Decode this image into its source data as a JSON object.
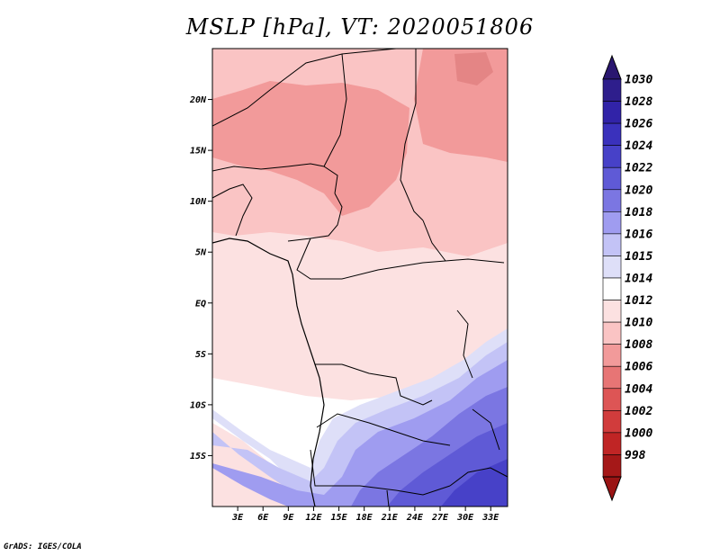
{
  "title": "MSLP [hPa], VT: 2020051806",
  "credit": "GrADS: IGES/COLA",
  "map": {
    "lon_range": [
      0,
      35
    ],
    "lat_range": [
      -20,
      25
    ],
    "lat_ticks": [
      {
        "value": 20,
        "label": "20N"
      },
      {
        "value": 15,
        "label": "15N"
      },
      {
        "value": 10,
        "label": "10N"
      },
      {
        "value": 5,
        "label": "5N"
      },
      {
        "value": 0,
        "label": "EQ"
      },
      {
        "value": -5,
        "label": "5S"
      },
      {
        "value": -10,
        "label": "10S"
      },
      {
        "value": -15,
        "label": "15S"
      }
    ],
    "lon_ticks": [
      {
        "value": 3,
        "label": "3E"
      },
      {
        "value": 6,
        "label": "6E"
      },
      {
        "value": 9,
        "label": "9E"
      },
      {
        "value": 12,
        "label": "12E"
      },
      {
        "value": 15,
        "label": "15E"
      },
      {
        "value": 18,
        "label": "18E"
      },
      {
        "value": 21,
        "label": "21E"
      },
      {
        "value": 24,
        "label": "24E"
      },
      {
        "value": 27,
        "label": "27E"
      },
      {
        "value": 30,
        "label": "30E"
      },
      {
        "value": 33,
        "label": "33E"
      }
    ]
  },
  "colorbar": {
    "levels": [
      {
        "label": "1030",
        "color": "#2e1e8c"
      },
      {
        "label": "1028",
        "color": "#3123a8"
      },
      {
        "label": "1026",
        "color": "#3a31bc"
      },
      {
        "label": "1024",
        "color": "#4741c8"
      },
      {
        "label": "1022",
        "color": "#5f5ad6"
      },
      {
        "label": "1020",
        "color": "#7b76e2"
      },
      {
        "label": "1018",
        "color": "#9f9cf0"
      },
      {
        "label": "1016",
        "color": "#c3c3f6"
      },
      {
        "label": "1015",
        "color": "#dedff8"
      },
      {
        "label": "1014",
        "color": "#ffffff"
      },
      {
        "label": "1012",
        "color": "#fce1e1"
      },
      {
        "label": "1010",
        "color": "#fac4c4"
      },
      {
        "label": "1008",
        "color": "#f29a9a"
      },
      {
        "label": "1006",
        "color": "#e77575"
      },
      {
        "label": "1004",
        "color": "#dd5555"
      },
      {
        "label": "1002",
        "color": "#d13c3c"
      },
      {
        "label": "1000",
        "color": "#c02525"
      },
      {
        "label": "998",
        "color": "#a51818"
      }
    ],
    "top_color": "#2a1670",
    "bottom_color": "#9a1414"
  }
}
